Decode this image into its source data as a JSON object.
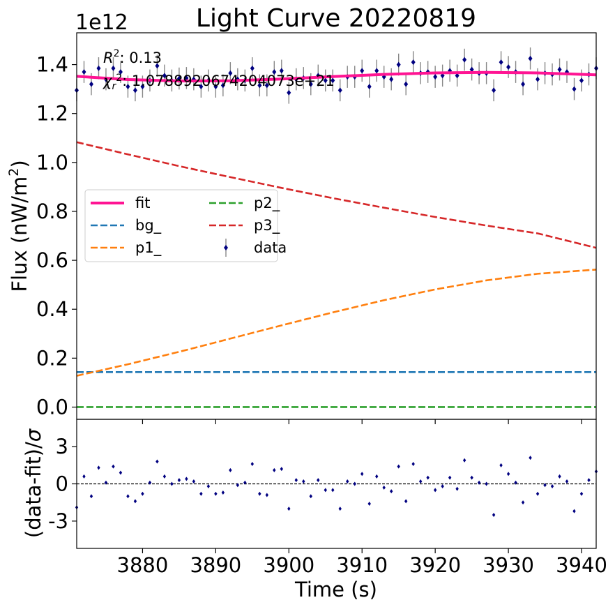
{
  "title": "Light Curve 20220819",
  "chart_data": [
    {
      "type": "scatter",
      "panel": "main",
      "title": "Light Curve 20220819",
      "xlabel": "",
      "ylabel": "Flux (nW/m²)",
      "offset_label": "1e12",
      "xlim": [
        3871,
        3942
      ],
      "ylim": [
        -0.05,
        1.53
      ],
      "yticks": [
        0.0,
        0.2,
        0.4,
        0.6,
        0.8,
        1.0,
        1.2,
        1.4
      ],
      "ytick_labels": [
        "0.0",
        "0.2",
        "0.4",
        "0.6",
        "0.8",
        "1.0",
        "1.2",
        "1.4"
      ],
      "annotations": [
        "R²: 0.13",
        "χr²: 1.0788920674204073e+21"
      ],
      "legend_position": "center-left",
      "legend": [
        {
          "label": "fit",
          "style": "solid",
          "color": "#ff1493"
        },
        {
          "label": "bg_",
          "style": "dashed",
          "color": "#1f77b4"
        },
        {
          "label": "p1_",
          "style": "dashed",
          "color": "#ff7f0e"
        },
        {
          "label": "p2_",
          "style": "dashed",
          "color": "#2ca02c"
        },
        {
          "label": "p3_",
          "style": "dashed",
          "color": "#d62728"
        },
        {
          "label": "data",
          "style": "errorbar",
          "color": "#000080"
        }
      ],
      "series": [
        {
          "name": "fit",
          "color": "#ff1493",
          "x": [
            3871,
            3878,
            3885,
            3892,
            3899,
            3906,
            3913,
            3920,
            3927,
            3934,
            3942
          ],
          "y": [
            1.352,
            1.339,
            1.333,
            1.334,
            1.341,
            1.351,
            1.36,
            1.366,
            1.368,
            1.366,
            1.358
          ]
        },
        {
          "name": "bg_",
          "color": "#1f77b4",
          "x": [
            3871,
            3942
          ],
          "y": [
            0.143,
            0.143
          ]
        },
        {
          "name": "p1_",
          "color": "#ff7f0e",
          "x": [
            3871,
            3878,
            3885,
            3892,
            3899,
            3906,
            3913,
            3920,
            3927,
            3934,
            3942
          ],
          "y": [
            0.128,
            0.175,
            0.226,
            0.28,
            0.334,
            0.387,
            0.437,
            0.481,
            0.518,
            0.545,
            0.562
          ]
        },
        {
          "name": "p2_",
          "color": "#2ca02c",
          "x": [
            3871,
            3942
          ],
          "y": [
            0.0,
            0.0
          ]
        },
        {
          "name": "p3_",
          "color": "#d62728",
          "x": [
            3871,
            3878,
            3885,
            3892,
            3899,
            3906,
            3913,
            3920,
            3927,
            3934,
            3942
          ],
          "y": [
            1.083,
            1.033,
            0.985,
            0.94,
            0.896,
            0.854,
            0.815,
            0.777,
            0.742,
            0.71,
            0.651
          ]
        },
        {
          "name": "data",
          "color": "#000080",
          "errorbar": 0.045,
          "x": [
            3871,
            3872,
            3873,
            3874,
            3875,
            3876,
            3877,
            3878,
            3879,
            3880,
            3881,
            3882,
            3883,
            3884,
            3885,
            3886,
            3887,
            3888,
            3889,
            3890,
            3891,
            3892,
            3893,
            3894,
            3895,
            3896,
            3897,
            3898,
            3899,
            3900,
            3901,
            3902,
            3903,
            3904,
            3905,
            3906,
            3907,
            3908,
            3909,
            3910,
            3911,
            3912,
            3913,
            3914,
            3915,
            3916,
            3917,
            3918,
            3919,
            3920,
            3921,
            3922,
            3923,
            3924,
            3925,
            3926,
            3927,
            3928,
            3929,
            3930,
            3931,
            3932,
            3933,
            3934,
            3935,
            3936,
            3937,
            3938,
            3939,
            3940,
            3941,
            3942
          ],
          "y": [
            1.295,
            1.37,
            1.32,
            1.385,
            1.34,
            1.385,
            1.37,
            1.31,
            1.295,
            1.31,
            1.335,
            1.395,
            1.355,
            1.335,
            1.343,
            1.345,
            1.34,
            1.31,
            1.335,
            1.31,
            1.315,
            1.365,
            1.34,
            1.335,
            1.385,
            1.315,
            1.315,
            1.37,
            1.375,
            1.285,
            1.34,
            1.345,
            1.32,
            1.355,
            1.335,
            1.335,
            1.295,
            1.35,
            1.35,
            1.375,
            1.31,
            1.375,
            1.35,
            1.34,
            1.4,
            1.32,
            1.41,
            1.365,
            1.37,
            1.35,
            1.355,
            1.375,
            1.355,
            1.42,
            1.38,
            1.365,
            1.365,
            1.295,
            1.41,
            1.39,
            1.37,
            1.32,
            1.425,
            1.34,
            1.365,
            1.36,
            1.38,
            1.37,
            1.3,
            1.335,
            1.36,
            1.385
          ]
        }
      ]
    },
    {
      "type": "scatter",
      "panel": "residuals",
      "xlabel": "Time (s)",
      "ylabel": "(data-fit)/σ",
      "xlim": [
        3871,
        3942
      ],
      "ylim": [
        -5.2,
        5.2
      ],
      "xticks": [
        3880,
        3890,
        3900,
        3910,
        3920,
        3930,
        3940
      ],
      "xtick_labels": [
        "3880",
        "3890",
        "3900",
        "3910",
        "3920",
        "3930",
        "3940"
      ],
      "yticks": [
        -3,
        0,
        3
      ],
      "ytick_labels": [
        "-3",
        "0",
        "3"
      ],
      "reference_line": 0,
      "series": [
        {
          "name": "residuals",
          "color": "#000080",
          "x": [
            3871,
            3872,
            3873,
            3874,
            3875,
            3876,
            3877,
            3878,
            3879,
            3880,
            3881,
            3882,
            3883,
            3884,
            3885,
            3886,
            3887,
            3888,
            3889,
            3890,
            3891,
            3892,
            3893,
            3894,
            3895,
            3896,
            3897,
            3898,
            3899,
            3900,
            3901,
            3902,
            3903,
            3904,
            3905,
            3906,
            3907,
            3908,
            3909,
            3910,
            3911,
            3912,
            3913,
            3914,
            3915,
            3916,
            3917,
            3918,
            3919,
            3920,
            3921,
            3922,
            3923,
            3924,
            3925,
            3926,
            3927,
            3928,
            3929,
            3930,
            3931,
            3932,
            3933,
            3934,
            3935,
            3936,
            3937,
            3938,
            3939,
            3940,
            3941,
            3942
          ],
          "y": [
            -1.9,
            0.6,
            -1.0,
            1.3,
            0.1,
            1.4,
            0.9,
            -1.0,
            -1.4,
            -0.8,
            0.1,
            1.8,
            0.6,
            0.0,
            0.3,
            0.4,
            0.2,
            -0.8,
            -0.2,
            -0.8,
            -0.7,
            1.1,
            -0.1,
            0.1,
            1.6,
            -0.8,
            -0.9,
            1.1,
            1.2,
            -2.0,
            0.3,
            0.2,
            -1.0,
            0.3,
            -0.5,
            -0.5,
            -2.0,
            0.2,
            0.0,
            0.8,
            -1.6,
            0.6,
            -0.3,
            -0.6,
            1.4,
            -1.4,
            1.6,
            0.2,
            0.5,
            -0.5,
            -0.2,
            0.5,
            -0.4,
            1.9,
            0.5,
            0.1,
            0.0,
            -2.5,
            1.5,
            0.8,
            0.1,
            -1.5,
            2.1,
            -0.8,
            -0.1,
            -0.2,
            0.6,
            0.2,
            -2.2,
            -0.8,
            0.3,
            1.0
          ]
        }
      ]
    }
  ]
}
